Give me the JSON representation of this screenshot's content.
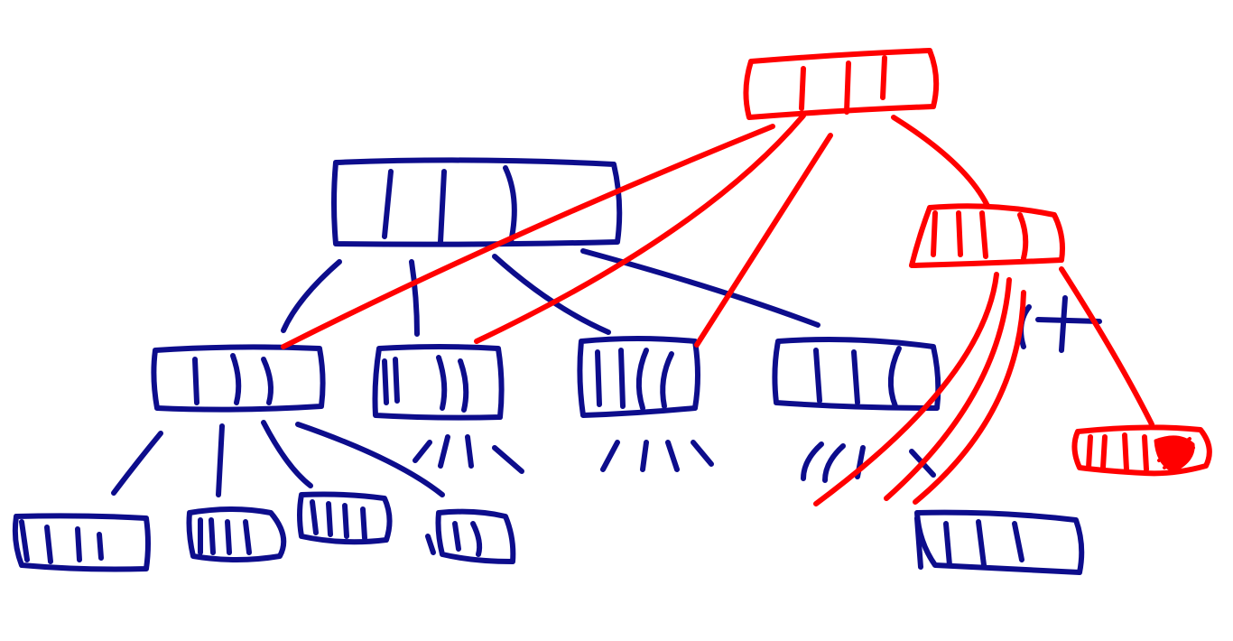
{
  "diagram": {
    "type": "hand-drawn tree (B-tree sketch)",
    "colors": {
      "old_tree": "#0d0d8c",
      "new_tree": "#ff0000",
      "background": "#ffffff"
    },
    "old_tree": {
      "root": {
        "slots": 4
      },
      "level1_nodes": [
        {
          "slots": 4
        },
        {
          "slots": 4
        },
        {
          "slots": 4
        },
        {
          "slots": 4
        }
      ],
      "level2_nodes": [
        {
          "slots": 4
        },
        {
          "slots": 4
        },
        {
          "slots": 4
        },
        {
          "slots": 3
        },
        {
          "slots": 4
        }
      ]
    },
    "new_tree": {
      "root": {
        "slots": 4
      },
      "child_node": {
        "slots": 4
      },
      "new_leaf": {
        "slots": 4,
        "last_slot_filled": true
      }
    },
    "annotations": {
      "crossed_out_pointer": true
    }
  }
}
